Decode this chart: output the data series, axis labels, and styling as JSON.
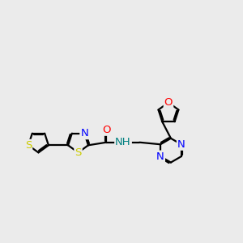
{
  "bg_color": "#ebebeb",
  "S_color": "#cccc00",
  "N_color": "#0000ff",
  "O_color": "#ff0000",
  "NH_color": "#008080",
  "lw": 1.6,
  "dbo": 0.055,
  "fs": 9.5,
  "xlim": [
    0,
    10
  ],
  "ylim": [
    1.5,
    8.5
  ]
}
